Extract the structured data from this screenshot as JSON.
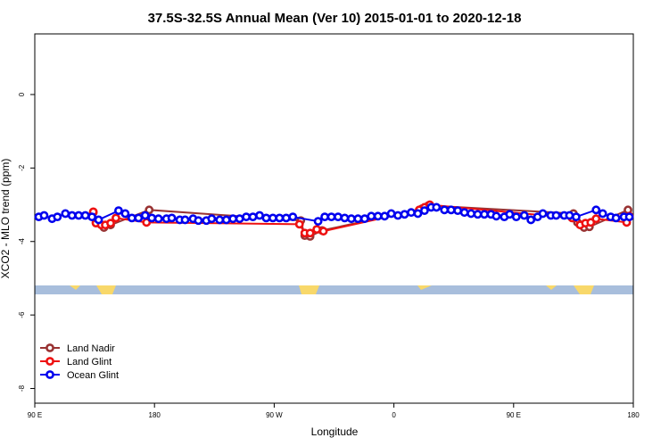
{
  "chart_data": {
    "type": "line",
    "title": "37.5S-32.5S Annual Mean (Ver 10)   2015-01-01 to 2020-12-18",
    "xlabel": "Longitude",
    "ylabel": "XCO2 - MLO trend (ppm)",
    "xlim": [
      90,
      540
    ],
    "xticks": [
      {
        "value": 90,
        "label": "90 E"
      },
      {
        "value": 180,
        "label": "180"
      },
      {
        "value": 270,
        "label": "90 W"
      },
      {
        "value": 360,
        "label": "0"
      },
      {
        "value": 450,
        "label": "90 E"
      },
      {
        "value": 540,
        "label": "180"
      }
    ],
    "ylim": [
      -8.4,
      1.65
    ],
    "yticks": [
      0,
      -2,
      -4,
      -6,
      -8
    ],
    "legend": "bottom-left",
    "series": [
      {
        "name": "Land Nadir",
        "color": "#993333",
        "x": [
          134,
          136,
          142,
          147,
          176,
          290,
          293,
          297,
          306,
          381,
          386,
          495,
          498,
          503,
          507,
          536
        ],
        "values": [
          -3.21,
          -3.48,
          -3.62,
          -3.55,
          -3.14,
          -3.43,
          -3.84,
          -3.86,
          -3.7,
          -3.11,
          -3.02,
          -3.24,
          -3.48,
          -3.62,
          -3.6,
          -3.14
        ]
      },
      {
        "name": "Land Glint",
        "color": "#ee1111",
        "x": [
          134,
          136,
          140,
          143,
          147,
          151,
          174,
          289,
          293,
          297,
          302,
          307,
          379,
          383,
          387,
          494,
          500,
          504,
          508,
          512,
          535,
          537
        ],
        "values": [
          -3.19,
          -3.5,
          -3.55,
          -3.55,
          -3.5,
          -3.36,
          -3.48,
          -3.53,
          -3.77,
          -3.77,
          -3.67,
          -3.72,
          -3.14,
          -3.07,
          -3.0,
          -3.36,
          -3.55,
          -3.5,
          -3.48,
          -3.38,
          -3.48,
          -3.31
        ]
      },
      {
        "name": "Ocean Glint",
        "color": "#0000ee",
        "x": [
          93,
          97,
          103,
          107,
          113,
          118,
          123,
          128,
          133,
          138,
          153,
          158,
          163,
          168,
          173,
          178,
          183,
          189,
          193,
          199,
          203,
          209,
          213,
          219,
          223,
          229,
          234,
          239,
          244,
          249,
          254,
          259,
          264,
          269,
          274,
          279,
          284,
          303,
          308,
          313,
          318,
          323,
          328,
          333,
          338,
          343,
          348,
          353,
          358,
          363,
          368,
          373,
          378,
          383,
          388,
          392,
          398,
          403,
          408,
          413,
          418,
          423,
          428,
          433,
          437,
          443,
          447,
          452,
          458,
          463,
          468,
          472,
          478,
          482,
          488,
          492,
          497,
          512,
          517,
          523,
          527,
          533,
          537
        ],
        "values": [
          -3.33,
          -3.29,
          -3.38,
          -3.33,
          -3.24,
          -3.29,
          -3.29,
          -3.29,
          -3.33,
          -3.41,
          -3.16,
          -3.24,
          -3.36,
          -3.36,
          -3.29,
          -3.36,
          -3.38,
          -3.38,
          -3.36,
          -3.41,
          -3.41,
          -3.38,
          -3.43,
          -3.43,
          -3.38,
          -3.41,
          -3.41,
          -3.38,
          -3.38,
          -3.33,
          -3.33,
          -3.29,
          -3.36,
          -3.36,
          -3.36,
          -3.36,
          -3.33,
          -3.45,
          -3.33,
          -3.33,
          -3.33,
          -3.36,
          -3.38,
          -3.38,
          -3.38,
          -3.31,
          -3.31,
          -3.31,
          -3.24,
          -3.29,
          -3.26,
          -3.21,
          -3.24,
          -3.16,
          -3.07,
          -3.07,
          -3.14,
          -3.14,
          -3.16,
          -3.21,
          -3.24,
          -3.26,
          -3.26,
          -3.26,
          -3.31,
          -3.33,
          -3.26,
          -3.33,
          -3.29,
          -3.41,
          -3.33,
          -3.24,
          -3.29,
          -3.29,
          -3.29,
          -3.29,
          -3.33,
          -3.14,
          -3.24,
          -3.33,
          -3.36,
          -3.33,
          -3.33
        ]
      }
    ]
  }
}
